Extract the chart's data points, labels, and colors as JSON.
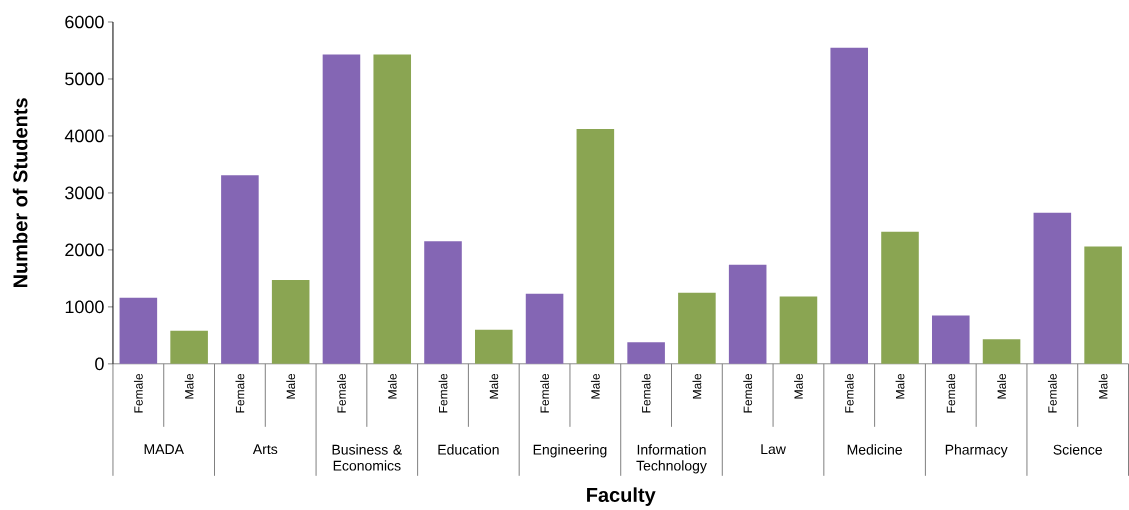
{
  "chart_data": {
    "type": "bar",
    "xlabel": "Faculty",
    "ylabel": "Number of Students",
    "categories": [
      "MADA",
      "Arts",
      "Business & Economics",
      "Education",
      "Engineering",
      "Information Technology",
      "Law",
      "Medicine",
      "Pharmacy",
      "Science"
    ],
    "series": [
      {
        "name": "Female",
        "color": "#8466b4",
        "values": [
          1160,
          3310,
          5430,
          2150,
          1230,
          380,
          1740,
          5550,
          850,
          2650
        ]
      },
      {
        "name": "Male",
        "color": "#8aa552",
        "values": [
          580,
          1470,
          5430,
          600,
          4120,
          1250,
          1180,
          2320,
          430,
          2060
        ]
      }
    ],
    "ylim": [
      0,
      6000
    ],
    "yticks": [
      0,
      1000,
      2000,
      3000,
      4000,
      5000,
      6000
    ],
    "grid": false
  }
}
